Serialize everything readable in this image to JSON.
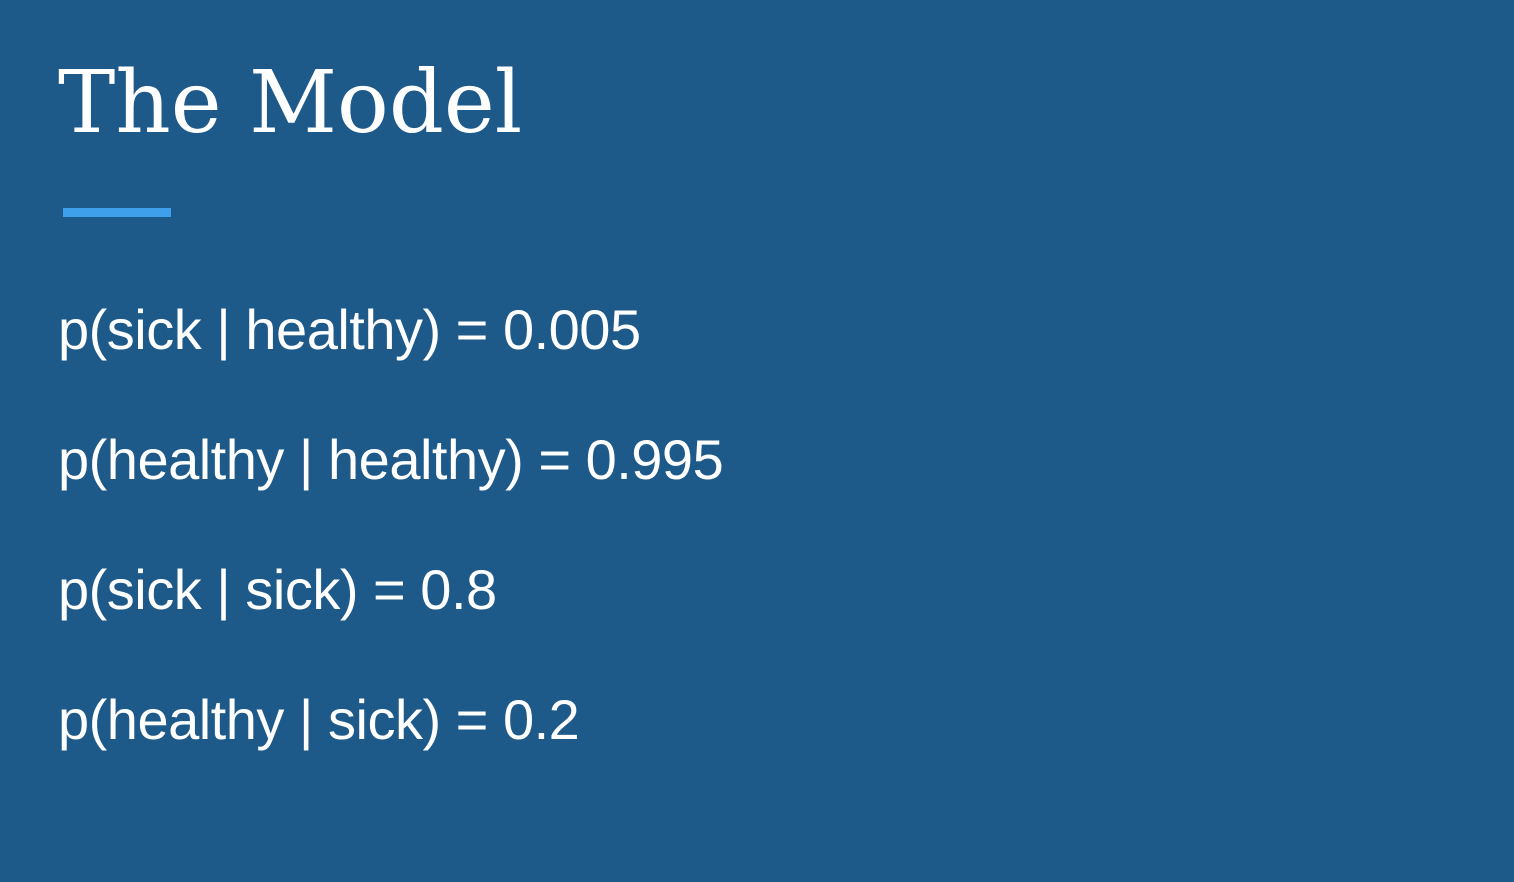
{
  "slide": {
    "title": "The Model",
    "accent_color": "#3ea0ea",
    "background_color": "#1d5a8a",
    "lines": [
      "p(sick | healthy) = 0.005",
      "p(healthy | healthy) = 0.995",
      "p(sick | sick) = 0.8",
      "p(healthy | sick) = 0.2"
    ]
  }
}
